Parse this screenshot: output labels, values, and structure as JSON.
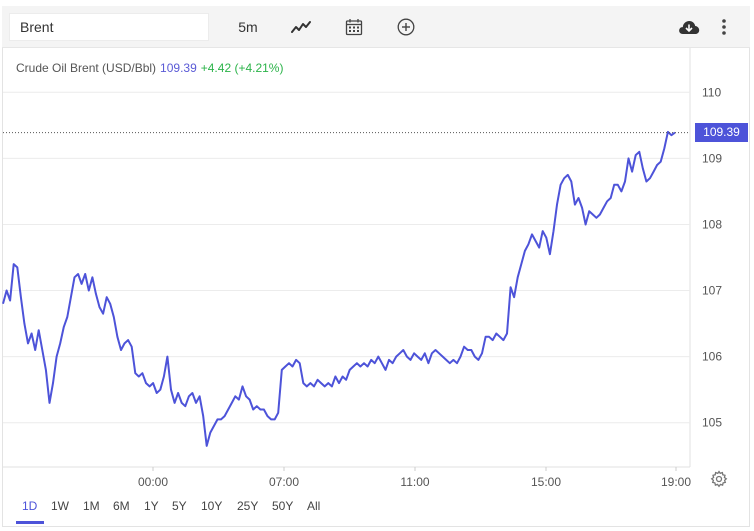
{
  "toolbar": {
    "symbol_value": "Brent",
    "interval_label": "5m",
    "icons": {
      "chart_type": "line-chart-icon",
      "calendar": "calendar-icon",
      "add": "add-circle-icon",
      "download": "cloud-download-icon",
      "more": "more-vertical-icon",
      "settings": "gear-icon"
    }
  },
  "legend": {
    "name": "Crude Oil Brent (USD/Bbl)",
    "price": "109.39",
    "change": "+4.42 (+4.21%)"
  },
  "price_tag": "109.39",
  "colors": {
    "line": "#4d53d9",
    "up": "#2cb34a",
    "grid": "#ececec",
    "price_tag_bg": "#4d53d9"
  },
  "range_buttons": [
    "1D",
    "1W",
    "1M",
    "6M",
    "1Y",
    "5Y",
    "10Y",
    "25Y",
    "50Y",
    "All"
  ],
  "active_range": "1D",
  "chart_data": {
    "type": "line",
    "series": [
      {
        "values": [
          106.8,
          107.0,
          106.85,
          107.4,
          107.35,
          106.9,
          106.5,
          106.2,
          106.35,
          106.1,
          106.4,
          106.1,
          105.8,
          105.3,
          105.6,
          106.0,
          106.2,
          106.45,
          106.6,
          106.9,
          107.2,
          107.25,
          107.1,
          107.25,
          107.0,
          107.2,
          106.95,
          106.75,
          106.65,
          106.9,
          106.8,
          106.6,
          106.3,
          106.1,
          106.2,
          106.25,
          106.15,
          105.75,
          105.7,
          105.75,
          105.6,
          105.55,
          105.6,
          105.45,
          105.5,
          105.7,
          106.0,
          105.5,
          105.3,
          105.45,
          105.3,
          105.25,
          105.4,
          105.45,
          105.3,
          105.4,
          105.1,
          104.65,
          104.85,
          104.95,
          105.05,
          105.05,
          105.1,
          105.2,
          105.3,
          105.4,
          105.35,
          105.55,
          105.4,
          105.35,
          105.2,
          105.25,
          105.2,
          105.2,
          105.1,
          105.05,
          105.05,
          105.15,
          105.8,
          105.85,
          105.9,
          105.85,
          105.95,
          105.9,
          105.6,
          105.55,
          105.6,
          105.55,
          105.65,
          105.6,
          105.55,
          105.6,
          105.55,
          105.7,
          105.6,
          105.7,
          105.65,
          105.8,
          105.85,
          105.9,
          105.85,
          105.9,
          105.85,
          105.95,
          105.9,
          106.0,
          105.9,
          105.8,
          105.95,
          105.9,
          106.0,
          106.05,
          106.1,
          106.0,
          105.95,
          106.05,
          106.0,
          105.95,
          106.05,
          105.9,
          106.05,
          106.1,
          106.05,
          106.0,
          105.95,
          105.9,
          105.95,
          105.9,
          106.0,
          106.15,
          106.1,
          106.1,
          106.0,
          105.95,
          106.05,
          106.3,
          106.3,
          106.25,
          106.35,
          106.3,
          106.25,
          106.35,
          107.05,
          106.9,
          107.2,
          107.4,
          107.6,
          107.7,
          107.85,
          107.75,
          107.65,
          107.9,
          107.8,
          107.55,
          107.9,
          108.3,
          108.6,
          108.7,
          108.75,
          108.65,
          108.3,
          108.4,
          108.25,
          108.0,
          108.2,
          108.15,
          108.1,
          108.15,
          108.25,
          108.35,
          108.4,
          108.6,
          108.6,
          108.5,
          108.65,
          109.0,
          108.8,
          109.05,
          109.1,
          108.85,
          108.65,
          108.7,
          108.8,
          108.9,
          108.95,
          109.15,
          109.4,
          109.35,
          109.39
        ],
        "color": "#4d53d9"
      }
    ],
    "x_ticks": [
      "00:00",
      "07:00",
      "11:00",
      "15:00",
      "19:00"
    ],
    "y_ticks": [
      105,
      106,
      107,
      108,
      109,
      110
    ],
    "ylim": [
      104.33,
      110.67
    ],
    "last_value": 109.39,
    "grid": true,
    "xlabel": "",
    "ylabel": ""
  }
}
